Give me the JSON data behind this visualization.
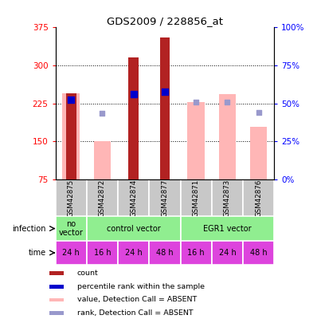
{
  "title": "GDS2009 / 228856_at",
  "samples": [
    "GSM42875",
    "GSM42872",
    "GSM42874",
    "GSM42877",
    "GSM42871",
    "GSM42873",
    "GSM42876"
  ],
  "ylim_left": [
    75,
    375
  ],
  "yticks_left": [
    75,
    150,
    225,
    300,
    375
  ],
  "right_ticks_data": [
    75,
    150,
    225,
    300,
    375
  ],
  "right_tick_labels": [
    "0%",
    "25%",
    "50%",
    "75%",
    "100%"
  ],
  "count_values": [
    245,
    null,
    315,
    355,
    null,
    null,
    null
  ],
  "rank_values": [
    232,
    null,
    243,
    248,
    null,
    null,
    null
  ],
  "absent_value_values": [
    245,
    150,
    null,
    null,
    228,
    243,
    178
  ],
  "absent_rank_values": [
    null,
    205,
    null,
    null,
    228,
    228,
    207
  ],
  "time_labels": [
    "24 h",
    "16 h",
    "24 h",
    "48 h",
    "16 h",
    "24 h",
    "48 h"
  ],
  "time_bg_color": "#dd44dd",
  "sample_bg_color": "#c8c8c8",
  "color_dark_red": "#b22222",
  "color_blue": "#0000cc",
  "color_pink": "#ffb6b6",
  "color_light_blue": "#9999cc",
  "infect_configs": [
    [
      0,
      1,
      "no\nvector",
      "#90ee90"
    ],
    [
      1,
      4,
      "control vector",
      "#90ee90"
    ],
    [
      4,
      7,
      "EGR1 vector",
      "#90ee90"
    ]
  ],
  "legend_items": [
    [
      "count",
      "#b22222"
    ],
    [
      "percentile rank within the sample",
      "#0000cc"
    ],
    [
      "value, Detection Call = ABSENT",
      "#ffb6b6"
    ],
    [
      "rank, Detection Call = ABSENT",
      "#9999cc"
    ]
  ]
}
